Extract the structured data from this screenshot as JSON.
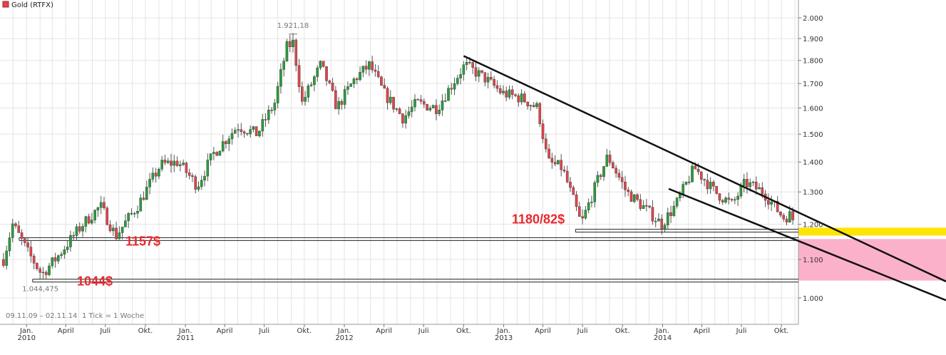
{
  "chart_data": {
    "type": "candlestick",
    "instrument": "Gold (RTFX)",
    "legend": {
      "label": "Gold (RTFX)",
      "color": "#e0454b",
      "placement": "top-left"
    },
    "date_range": "09.11.09 – 02.11.14",
    "tick_info": "1 Tick = 1 Woche",
    "ylim": [
      950,
      2050
    ],
    "y_scale": "log",
    "grid": true,
    "y_ticks": [
      "1.000",
      "1.100",
      "1.200",
      "1.300",
      "1.400",
      "1.500",
      "1.600",
      "1.700",
      "1.800",
      "1.900",
      "2.000"
    ],
    "y_tick_values": [
      1000,
      1100,
      1200,
      1300,
      1400,
      1500,
      1600,
      1700,
      1800,
      1900,
      2000
    ],
    "x_ticks": [
      {
        "label": "Jan.",
        "year": "2010",
        "date": "2010-01-01"
      },
      {
        "label": "April",
        "year": "",
        "date": "2010-04-01"
      },
      {
        "label": "Juli",
        "year": "",
        "date": "2010-07-01"
      },
      {
        "label": "Okt.",
        "year": "",
        "date": "2010-10-01"
      },
      {
        "label": "Jan.",
        "year": "2011",
        "date": "2011-01-01"
      },
      {
        "label": "April",
        "year": "",
        "date": "2011-04-01"
      },
      {
        "label": "Juli",
        "year": "",
        "date": "2011-07-01"
      },
      {
        "label": "Okt.",
        "year": "",
        "date": "2011-10-01"
      },
      {
        "label": "Jan.",
        "year": "2012",
        "date": "2012-01-01"
      },
      {
        "label": "April",
        "year": "",
        "date": "2012-04-01"
      },
      {
        "label": "Juli",
        "year": "",
        "date": "2012-07-01"
      },
      {
        "label": "Okt.",
        "year": "",
        "date": "2012-10-01"
      },
      {
        "label": "Jan.",
        "year": "2013",
        "date": "2013-01-01"
      },
      {
        "label": "April",
        "year": "",
        "date": "2013-04-01"
      },
      {
        "label": "Juli",
        "year": "",
        "date": "2013-07-01"
      },
      {
        "label": "Okt.",
        "year": "",
        "date": "2013-10-01"
      },
      {
        "label": "Jan.",
        "year": "2014",
        "date": "2014-01-01"
      },
      {
        "label": "April",
        "year": "",
        "date": "2014-04-01"
      },
      {
        "label": "Juli",
        "year": "",
        "date": "2014-07-01"
      },
      {
        "label": "Okt.",
        "year": "",
        "date": "2014-10-01"
      }
    ],
    "extremes": {
      "high": {
        "label": "1.921,18",
        "value": 1921.18,
        "date": "2011-09-05"
      },
      "low": {
        "label": "1.044,475",
        "value": 1044.475,
        "date": "2010-02-05"
      }
    },
    "price_path": [
      [
        "2009-11-09",
        1100
      ],
      [
        "2009-11-30",
        1200
      ],
      [
        "2010-01-04",
        1120
      ],
      [
        "2010-02-05",
        1060
      ],
      [
        "2010-03-15",
        1110
      ],
      [
        "2010-05-10",
        1200
      ],
      [
        "2010-06-20",
        1255
      ],
      [
        "2010-07-25",
        1165
      ],
      [
        "2010-09-15",
        1260
      ],
      [
        "2010-11-05",
        1390
      ],
      [
        "2010-12-15",
        1400
      ],
      [
        "2011-01-28",
        1320
      ],
      [
        "2011-03-07",
        1430
      ],
      [
        "2011-05-01",
        1530
      ],
      [
        "2011-06-15",
        1500
      ],
      [
        "2011-07-25",
        1620
      ],
      [
        "2011-08-22",
        1860
      ],
      [
        "2011-09-05",
        1880
      ],
      [
        "2011-09-26",
        1620
      ],
      [
        "2011-11-08",
        1780
      ],
      [
        "2011-12-15",
        1600
      ],
      [
        "2012-01-25",
        1720
      ],
      [
        "2012-02-28",
        1780
      ],
      [
        "2012-04-01",
        1660
      ],
      [
        "2012-05-15",
        1560
      ],
      [
        "2012-06-15",
        1620
      ],
      [
        "2012-08-01",
        1600
      ],
      [
        "2012-10-04",
        1780
      ],
      [
        "2012-11-20",
        1720
      ],
      [
        "2012-12-28",
        1660
      ],
      [
        "2013-02-10",
        1640
      ],
      [
        "2013-03-20",
        1600
      ],
      [
        "2013-04-12",
        1400
      ],
      [
        "2013-05-15",
        1380
      ],
      [
        "2013-06-28",
        1200
      ],
      [
        "2013-08-28",
        1420
      ],
      [
        "2013-10-10",
        1300
      ],
      [
        "2013-11-20",
        1250
      ],
      [
        "2013-12-30",
        1200
      ],
      [
        "2014-02-01",
        1260
      ],
      [
        "2014-03-15",
        1380
      ],
      [
        "2014-05-01",
        1300
      ],
      [
        "2014-06-10",
        1260
      ],
      [
        "2014-07-10",
        1330
      ],
      [
        "2014-08-20",
        1300
      ],
      [
        "2014-10-05",
        1220
      ],
      [
        "2014-10-25",
        1230
      ],
      [
        "2014-11-02",
        1170
      ]
    ],
    "annotations": [
      {
        "text": "1157$",
        "value": 1157
      },
      {
        "text": "1044$",
        "value": 1044
      },
      {
        "text": "1180/82$",
        "value": 1181
      }
    ],
    "support_levels": [
      {
        "value": 1157,
        "from": "2009-12-15",
        "style": "double"
      },
      {
        "value": 1044,
        "from": "2010-01-15",
        "style": "double"
      },
      {
        "value": 1181,
        "from": "2013-06-15",
        "style": "double"
      }
    ],
    "trend_lines": [
      {
        "name": "upper",
        "points": [
          [
            "2012-10-01",
            1820
          ],
          [
            "2014-11-02",
            1240
          ]
        ]
      },
      {
        "name": "lower",
        "points": [
          [
            "2014-01-15",
            1310
          ],
          [
            "2014-11-02",
            1155
          ]
        ]
      }
    ],
    "zones": [
      {
        "color": "#ffe400",
        "from_value": 1167,
        "to_value": 1190
      },
      {
        "color": "#fcb1cb",
        "from_value": 1044,
        "to_value": 1157
      }
    ],
    "colors": {
      "up": "#2a9d3a",
      "down": "#e0454b",
      "wick": "#555555",
      "grid": "#e4e4e4",
      "trend": "#111111"
    }
  }
}
